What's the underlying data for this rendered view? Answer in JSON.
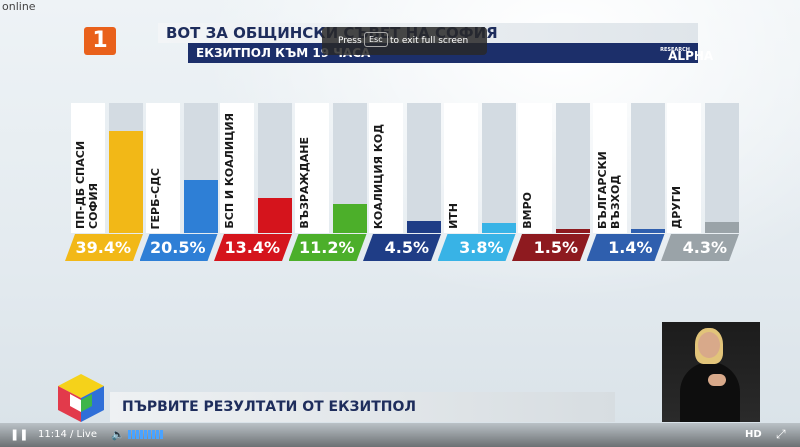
{
  "overlay": {
    "online_label": "online"
  },
  "broadcast": {
    "channel_logo": "1",
    "title": "ВОТ ЗА ОБЩИНСКИ СЪВЕТ НА СОФИЯ",
    "subtitle": "ЕКЗИТПОЛ КЪМ 19 ЧАСА",
    "pollster": "ALPHA",
    "pollster_sub": "RESEARCH",
    "ticker": "ПЪРВИТЕ РЕЗУЛТАТИ ОТ ЕКЗИТПОЛ"
  },
  "fullscreen_hint": {
    "press": "Press",
    "key": "Esc",
    "text": "to exit full screen"
  },
  "chart_data": {
    "type": "bar",
    "categories": [
      "ПП-ДБ СПАСИ СОФИЯ",
      "ГЕРБ-СДС",
      "БСП И КОАЛИЦИЯ",
      "ВЪЗРАЖДАНЕ",
      "КОАЛИЦИЯ КОД",
      "ИТН",
      "ВМРО",
      "БЪЛГАРСКИ ВЪЗХОД",
      "ДРУГИ"
    ],
    "values": [
      39.4,
      20.5,
      13.4,
      11.2,
      4.5,
      3.8,
      1.5,
      1.4,
      4.3
    ],
    "labels": [
      "39.4%",
      "20.5%",
      "13.4%",
      "11.2%",
      "4.5%",
      "3.8%",
      "1.5%",
      "1.4%",
      "4.3%"
    ],
    "colors": [
      "#f2b817",
      "#2e7fd6",
      "#d5141c",
      "#4caf2a",
      "#1f3d86",
      "#38b3e6",
      "#8e1a1f",
      "#2f5fae",
      "#9aa3a8"
    ],
    "ylim": [
      0,
      100
    ]
  },
  "player": {
    "time": "11:14 / Live",
    "quality": "HD"
  }
}
